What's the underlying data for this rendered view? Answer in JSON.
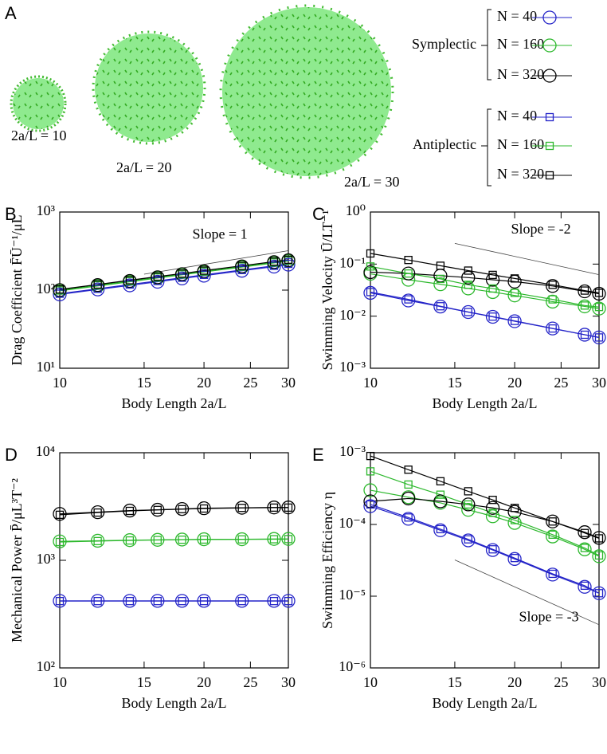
{
  "illustration": {
    "panel": "A",
    "labels": [
      "2a/L = 10",
      "2a/L = 20",
      "2a/L = 30"
    ]
  },
  "chart_data": [
    {
      "type": "line",
      "panel": "B",
      "ylabel": "Drag Coefficient  F̄Ū⁻¹/μL",
      "xlabel": "Body Length  2a/L",
      "xscale": "log",
      "yscale": "log",
      "grid": false,
      "x": [
        10,
        12,
        14,
        16,
        18,
        20,
        24,
        28,
        30
      ],
      "xlim": [
        10,
        30
      ],
      "xticks": [
        10,
        15,
        20,
        25,
        30
      ],
      "ylim": [
        10,
        1000
      ],
      "yticks": [
        {
          "value": 10,
          "label": "10¹"
        },
        {
          "value": 100,
          "label": "10²"
        },
        {
          "value": 1000,
          "label": "10³"
        }
      ],
      "series": [
        {
          "group": "Symplectic",
          "name": "N = 40",
          "marker": "circle",
          "color": "#2323c8",
          "values": [
            88,
            102,
            115,
            128,
            141,
            153,
            177,
            200,
            212
          ]
        },
        {
          "group": "Symplectic",
          "name": "N = 160",
          "marker": "circle",
          "color": "#2cb82c",
          "values": [
            98,
            113,
            128,
            143,
            157,
            171,
            197,
            223,
            236
          ]
        },
        {
          "group": "Symplectic",
          "name": "N = 320",
          "marker": "circle",
          "color": "#000000",
          "values": [
            100,
            116,
            131,
            146,
            160,
            174,
            201,
            228,
            241
          ]
        },
        {
          "group": "Antiplectic",
          "name": "N = 40",
          "marker": "square",
          "color": "#2323c8",
          "values": [
            90,
            104,
            118,
            131,
            144,
            157,
            181,
            205,
            217
          ]
        },
        {
          "group": "Antiplectic",
          "name": "N = 160",
          "marker": "square",
          "color": "#2cb82c",
          "values": [
            99,
            115,
            130,
            145,
            159,
            173,
            200,
            226,
            239
          ]
        },
        {
          "group": "Antiplectic",
          "name": "N = 320",
          "marker": "square",
          "color": "#000000",
          "values": [
            102,
            118,
            134,
            149,
            163,
            178,
            205,
            232,
            245
          ]
        }
      ],
      "annotation": {
        "text": "Slope = 1",
        "x": [
          15,
          30
        ],
        "y": [
          160,
          320
        ]
      }
    },
    {
      "type": "line",
      "panel": "C",
      "ylabel": "Swimming Velocity  Ū/LT⁻¹",
      "xlabel": "Body Length  2a/L",
      "xscale": "log",
      "yscale": "log",
      "grid": false,
      "x": [
        10,
        12,
        14,
        16,
        18,
        20,
        24,
        28,
        30
      ],
      "xlim": [
        10,
        30
      ],
      "xticks": [
        10,
        15,
        20,
        25,
        30
      ],
      "ylim": [
        0.001,
        1
      ],
      "yticks": [
        {
          "value": 0.001,
          "label": "10⁻³"
        },
        {
          "value": 0.01,
          "label": "10⁻²"
        },
        {
          "value": 0.1,
          "label": "10⁻¹"
        },
        {
          "value": 1,
          "label": "10⁰"
        }
      ],
      "series": [
        {
          "group": "Symplectic",
          "name": "N = 40",
          "marker": "circle",
          "color": "#2323c8",
          "values": [
            0.028,
            0.02,
            0.0153,
            0.012,
            0.0097,
            0.008,
            0.0058,
            0.0044,
            0.0039
          ]
        },
        {
          "group": "Symplectic",
          "name": "N = 160",
          "marker": "circle",
          "color": "#2cb82c",
          "values": [
            0.065,
            0.05,
            0.041,
            0.034,
            0.029,
            0.025,
            0.019,
            0.0154,
            0.014
          ]
        },
        {
          "group": "Symplectic",
          "name": "N = 320",
          "marker": "circle",
          "color": "#000000",
          "values": [
            0.07,
            0.066,
            0.06,
            0.055,
            0.05,
            0.046,
            0.038,
            0.03,
            0.027
          ]
        },
        {
          "group": "Antiplectic",
          "name": "N = 40",
          "marker": "square",
          "color": "#2323c8",
          "values": [
            0.029,
            0.021,
            0.0155,
            0.012,
            0.0098,
            0.0081,
            0.0058,
            0.0044,
            0.0039
          ]
        },
        {
          "group": "Antiplectic",
          "name": "N = 160",
          "marker": "square",
          "color": "#2cb82c",
          "values": [
            0.09,
            0.066,
            0.052,
            0.04,
            0.034,
            0.028,
            0.021,
            0.016,
            0.015
          ]
        },
        {
          "group": "Antiplectic",
          "name": "N = 320",
          "marker": "square",
          "color": "#000000",
          "values": [
            0.16,
            0.12,
            0.093,
            0.075,
            0.062,
            0.053,
            0.04,
            0.031,
            0.028
          ]
        }
      ],
      "annotation": {
        "text": "Slope = -2",
        "x": [
          15,
          30
        ],
        "y": [
          0.25,
          0.0625
        ]
      }
    },
    {
      "type": "line",
      "panel": "D",
      "ylabel": "Mechanical Power  P̄/μL³T⁻²",
      "xlabel": "Body Length  2a/L",
      "xscale": "log",
      "yscale": "log",
      "grid": false,
      "x": [
        10,
        12,
        14,
        16,
        18,
        20,
        24,
        28,
        30
      ],
      "xlim": [
        10,
        30
      ],
      "xticks": [
        10,
        15,
        20,
        25,
        30
      ],
      "ylim": [
        100,
        10000
      ],
      "yticks": [
        {
          "value": 100,
          "label": "10²"
        },
        {
          "value": 1000,
          "label": "10³"
        },
        {
          "value": 10000,
          "label": "10⁴"
        }
      ],
      "series": [
        {
          "group": "Symplectic",
          "name": "N = 40",
          "marker": "circle",
          "color": "#2323c8",
          "values": [
            420,
            420,
            420,
            420,
            420,
            420,
            420,
            420,
            420
          ]
        },
        {
          "group": "Symplectic",
          "name": "N = 160",
          "marker": "circle",
          "color": "#2cb82c",
          "values": [
            1500,
            1520,
            1540,
            1550,
            1560,
            1570,
            1570,
            1580,
            1580
          ]
        },
        {
          "group": "Symplectic",
          "name": "N = 320",
          "marker": "circle",
          "color": "#000000",
          "values": [
            2700,
            2800,
            2900,
            2950,
            3000,
            3050,
            3080,
            3100,
            3100
          ]
        },
        {
          "group": "Antiplectic",
          "name": "N = 40",
          "marker": "square",
          "color": "#2323c8",
          "values": [
            418,
            418,
            418,
            418,
            418,
            418,
            418,
            418,
            418
          ]
        },
        {
          "group": "Antiplectic",
          "name": "N = 160",
          "marker": "square",
          "color": "#2cb82c",
          "values": [
            1480,
            1510,
            1530,
            1545,
            1555,
            1560,
            1565,
            1570,
            1575
          ]
        },
        {
          "group": "Antiplectic",
          "name": "N = 320",
          "marker": "square",
          "color": "#000000",
          "values": [
            2650,
            2780,
            2880,
            2940,
            2990,
            3030,
            3070,
            3090,
            3090
          ]
        }
      ]
    },
    {
      "type": "line",
      "panel": "E",
      "ylabel": "Swimming Efficiency  η",
      "xlabel": "Body Length  2a/L",
      "xscale": "log",
      "yscale": "log",
      "grid": false,
      "x": [
        10,
        12,
        14,
        16,
        18,
        20,
        24,
        28,
        30
      ],
      "xlim": [
        10,
        30
      ],
      "xticks": [
        10,
        15,
        20,
        25,
        30
      ],
      "ylim": [
        1e-06,
        0.001
      ],
      "yticks": [
        {
          "value": 1e-06,
          "label": "10⁻⁶"
        },
        {
          "value": 1e-05,
          "label": "10⁻⁵"
        },
        {
          "value": 0.0001,
          "label": "10⁻⁴"
        },
        {
          "value": 0.001,
          "label": "10⁻³"
        }
      ],
      "series": [
        {
          "group": "Symplectic",
          "name": "N = 40",
          "marker": "circle",
          "color": "#2323c8",
          "values": [
            0.00018,
            0.00012,
            8.3e-05,
            6e-05,
            4.4e-05,
            3.3e-05,
            2e-05,
            1.35e-05,
            1.1e-05
          ]
        },
        {
          "group": "Symplectic",
          "name": "N = 160",
          "marker": "circle",
          "color": "#2cb82c",
          "values": [
            0.0003,
            0.00024,
            0.0002,
            0.00016,
            0.00013,
            0.000105,
            6.8e-05,
            4.5e-05,
            3.6e-05
          ]
        },
        {
          "group": "Symplectic",
          "name": "N = 320",
          "marker": "circle",
          "color": "#000000",
          "values": [
            0.00021,
            0.00023,
            0.00021,
            0.00019,
            0.00017,
            0.00015,
            0.00011,
            7.8e-05,
            6.5e-05
          ]
        },
        {
          "group": "Antiplectic",
          "name": "N = 40",
          "marker": "square",
          "color": "#2323c8",
          "values": [
            0.00019,
            0.000125,
            8.6e-05,
            6.2e-05,
            4.5e-05,
            3.4e-05,
            2.05e-05,
            1.4e-05,
            1.1e-05
          ]
        },
        {
          "group": "Antiplectic",
          "name": "N = 160",
          "marker": "square",
          "color": "#2cb82c",
          "values": [
            0.00055,
            0.00036,
            0.00026,
            0.00019,
            0.000145,
            0.000115,
            7.2e-05,
            4.7e-05,
            3.7e-05
          ]
        },
        {
          "group": "Antiplectic",
          "name": "N = 320",
          "marker": "square",
          "color": "#000000",
          "values": [
            0.0009,
            0.00058,
            0.0004,
            0.00029,
            0.00022,
            0.00017,
            0.00011,
            7.6e-05,
            6.4e-05
          ]
        }
      ],
      "annotation": {
        "text": "Slope = -3",
        "x": [
          15,
          30
        ],
        "y": [
          3.2e-05,
          4e-06
        ]
      }
    }
  ]
}
